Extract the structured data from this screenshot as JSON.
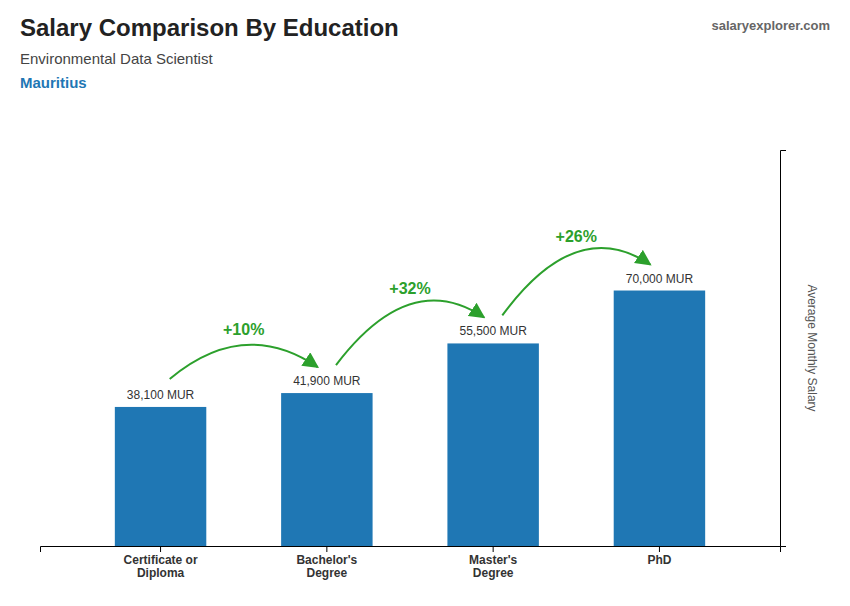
{
  "chart_data": {
    "type": "bar",
    "title": "Salary Comparison By Education",
    "subtitle": "Environmental Data Scientist",
    "location": "Mauritius",
    "watermark": "salaryexplorer.com",
    "y_label": "Average Monthly Salary",
    "categories": [
      "Certificate or\nDiploma",
      "Bachelor's\nDegree",
      "Master's\nDegree",
      "PhD"
    ],
    "values": [
      38100,
      41900,
      55500,
      70000
    ],
    "value_labels": [
      "38,100 MUR",
      "41,900 MUR",
      "55,500 MUR",
      "70,000 MUR"
    ],
    "data_labels": true,
    "annotations": [
      "+10%",
      "+32%",
      "+26%"
    ],
    "ylim": [
      0,
      108500
    ],
    "yticks": [],
    "tick_labels": "x",
    "grid": false
  }
}
